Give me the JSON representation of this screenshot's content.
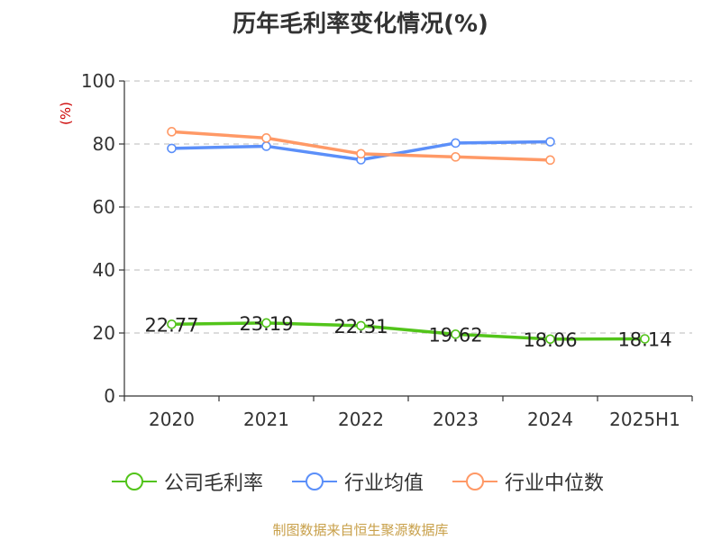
{
  "title": "历年毛利率变化情况(%)",
  "source": "制图数据来自恒生聚源数据库",
  "chart_data": {
    "type": "line",
    "title": "历年毛利率变化情况(%)",
    "ylabel": "(%)",
    "xlabel": "",
    "categories": [
      "2020",
      "2021",
      "2022",
      "2023",
      "2024",
      "2025H1"
    ],
    "ylim": [
      0,
      100
    ],
    "yticks": [
      0,
      20,
      40,
      60,
      80,
      100
    ],
    "grid": "horizontal dashed",
    "legend_position": "bottom",
    "series": [
      {
        "name": "公司毛利率",
        "color": "#52c41a",
        "values": [
          22.77,
          23.19,
          22.31,
          19.62,
          18.06,
          18.14
        ],
        "labels": [
          "22.77",
          "23.19",
          "22.31",
          "19.62",
          "18.06",
          "18.14"
        ]
      },
      {
        "name": "行业均值",
        "color": "#5b8ff9",
        "values": [
          78.6,
          79.3,
          75.0,
          80.3,
          80.7,
          null
        ]
      },
      {
        "name": "行业中位数",
        "color": "#ff9966",
        "values": [
          83.9,
          81.9,
          76.9,
          75.9,
          74.9,
          null
        ]
      }
    ]
  }
}
